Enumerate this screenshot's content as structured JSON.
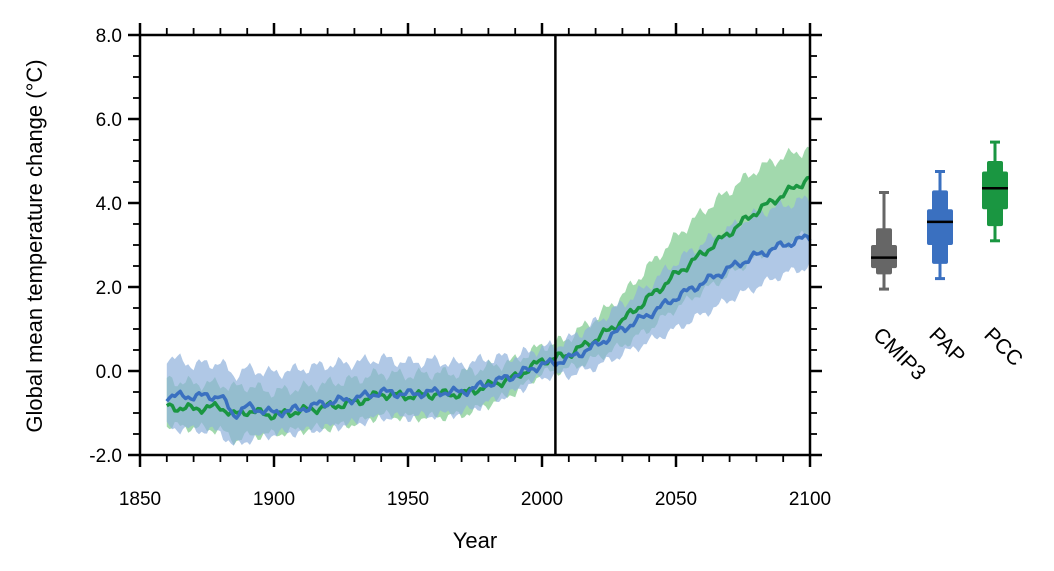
{
  "chart_data": {
    "type": "line",
    "xlabel": "Year",
    "ylabel": "Global mean temperature change (°C)",
    "xlim": [
      1850,
      2100
    ],
    "ylim": [
      -2.0,
      8.0
    ],
    "x_ticks": [
      1850,
      1900,
      1950,
      2000,
      2050,
      2100
    ],
    "x_tick_labels": [
      "1850",
      "1900",
      "1950",
      "2000",
      "2050",
      "2100"
    ],
    "y_ticks": [
      -2.0,
      0.0,
      2.0,
      4.0,
      6.0,
      8.0
    ],
    "y_tick_labels": [
      "-2.0",
      "0.0",
      "2.0",
      "4.0",
      "6.0",
      "8.0"
    ],
    "vertical_line_x": 2005,
    "grid": false,
    "series": [
      {
        "color": "#1a9641",
        "band_color": "#7bc98a",
        "x": [
          1860,
          1870,
          1880,
          1885,
          1890,
          1900,
          1910,
          1920,
          1930,
          1940,
          1950,
          1960,
          1970,
          1980,
          1990,
          2000,
          2005,
          2010,
          2020,
          2030,
          2040,
          2050,
          2060,
          2070,
          2080,
          2090,
          2100
        ],
        "mean": [
          -0.85,
          -0.9,
          -0.85,
          -1.05,
          -0.95,
          -1.05,
          -0.95,
          -0.85,
          -0.75,
          -0.55,
          -0.6,
          -0.55,
          -0.55,
          -0.35,
          -0.15,
          0.25,
          0.3,
          0.4,
          0.75,
          1.2,
          1.75,
          2.3,
          2.8,
          3.3,
          3.8,
          4.2,
          4.6
        ],
        "lower": [
          -1.3,
          -1.35,
          -1.4,
          -1.65,
          -1.55,
          -1.5,
          -1.4,
          -1.35,
          -1.25,
          -1.05,
          -1.1,
          -1.1,
          -1.05,
          -0.8,
          -0.5,
          -0.05,
          0.0,
          0.05,
          0.3,
          0.6,
          1.0,
          1.5,
          1.9,
          2.3,
          2.7,
          3.0,
          3.3
        ],
        "upper": [
          -0.2,
          -0.3,
          -0.3,
          -0.4,
          -0.35,
          -0.5,
          -0.4,
          -0.3,
          -0.2,
          -0.05,
          -0.1,
          -0.05,
          -0.05,
          0.1,
          0.25,
          0.6,
          0.65,
          0.8,
          1.25,
          1.8,
          2.5,
          3.2,
          3.8,
          4.3,
          4.8,
          5.1,
          5.3
        ]
      },
      {
        "color": "#3a70c0",
        "band_color": "#8fb0db",
        "x": [
          1860,
          1870,
          1880,
          1885,
          1890,
          1900,
          1910,
          1920,
          1930,
          1940,
          1950,
          1960,
          1970,
          1980,
          1990,
          2000,
          2005,
          2010,
          2020,
          2030,
          2040,
          2050,
          2060,
          2070,
          2080,
          2090,
          2100
        ],
        "mean": [
          -0.6,
          -0.6,
          -0.6,
          -1.05,
          -0.85,
          -1.0,
          -0.9,
          -0.75,
          -0.65,
          -0.5,
          -0.55,
          -0.5,
          -0.5,
          -0.3,
          -0.1,
          0.15,
          0.2,
          0.3,
          0.6,
          1.0,
          1.35,
          1.75,
          2.1,
          2.45,
          2.75,
          3.0,
          3.2
        ],
        "lower": [
          -1.35,
          -1.4,
          -1.45,
          -1.8,
          -1.65,
          -1.5,
          -1.45,
          -1.35,
          -1.25,
          -1.1,
          -1.1,
          -1.05,
          -1.0,
          -0.75,
          -0.5,
          -0.15,
          -0.1,
          -0.1,
          0.1,
          0.4,
          0.7,
          1.0,
          1.35,
          1.7,
          2.0,
          2.3,
          2.5
        ],
        "upper": [
          0.35,
          0.15,
          0.2,
          -0.1,
          0.05,
          -0.05,
          0.05,
          0.15,
          0.2,
          0.3,
          0.2,
          0.25,
          0.15,
          0.3,
          0.35,
          0.55,
          0.6,
          0.75,
          1.15,
          1.6,
          2.05,
          2.6,
          3.05,
          3.4,
          3.75,
          3.95,
          4.1
        ]
      }
    ],
    "boxplots": [
      {
        "name": "CMIP3",
        "color": "#666666",
        "whisker_low": 1.95,
        "box_low": 2.3,
        "inner_low": 2.45,
        "median": 2.7,
        "inner_high": 3.0,
        "box_high": 3.4,
        "whisker_high": 4.25
      },
      {
        "name": "PAP",
        "color": "#3a70c0",
        "whisker_low": 2.2,
        "box_low": 2.55,
        "inner_low": 3.0,
        "median": 3.55,
        "inner_high": 3.85,
        "box_high": 4.3,
        "whisker_high": 4.75
      },
      {
        "name": "PCC",
        "color": "#1a9641",
        "whisker_low": 3.1,
        "box_low": 3.45,
        "inner_low": 3.85,
        "median": 4.35,
        "inner_high": 4.75,
        "box_high": 5.0,
        "whisker_high": 5.45
      }
    ]
  }
}
